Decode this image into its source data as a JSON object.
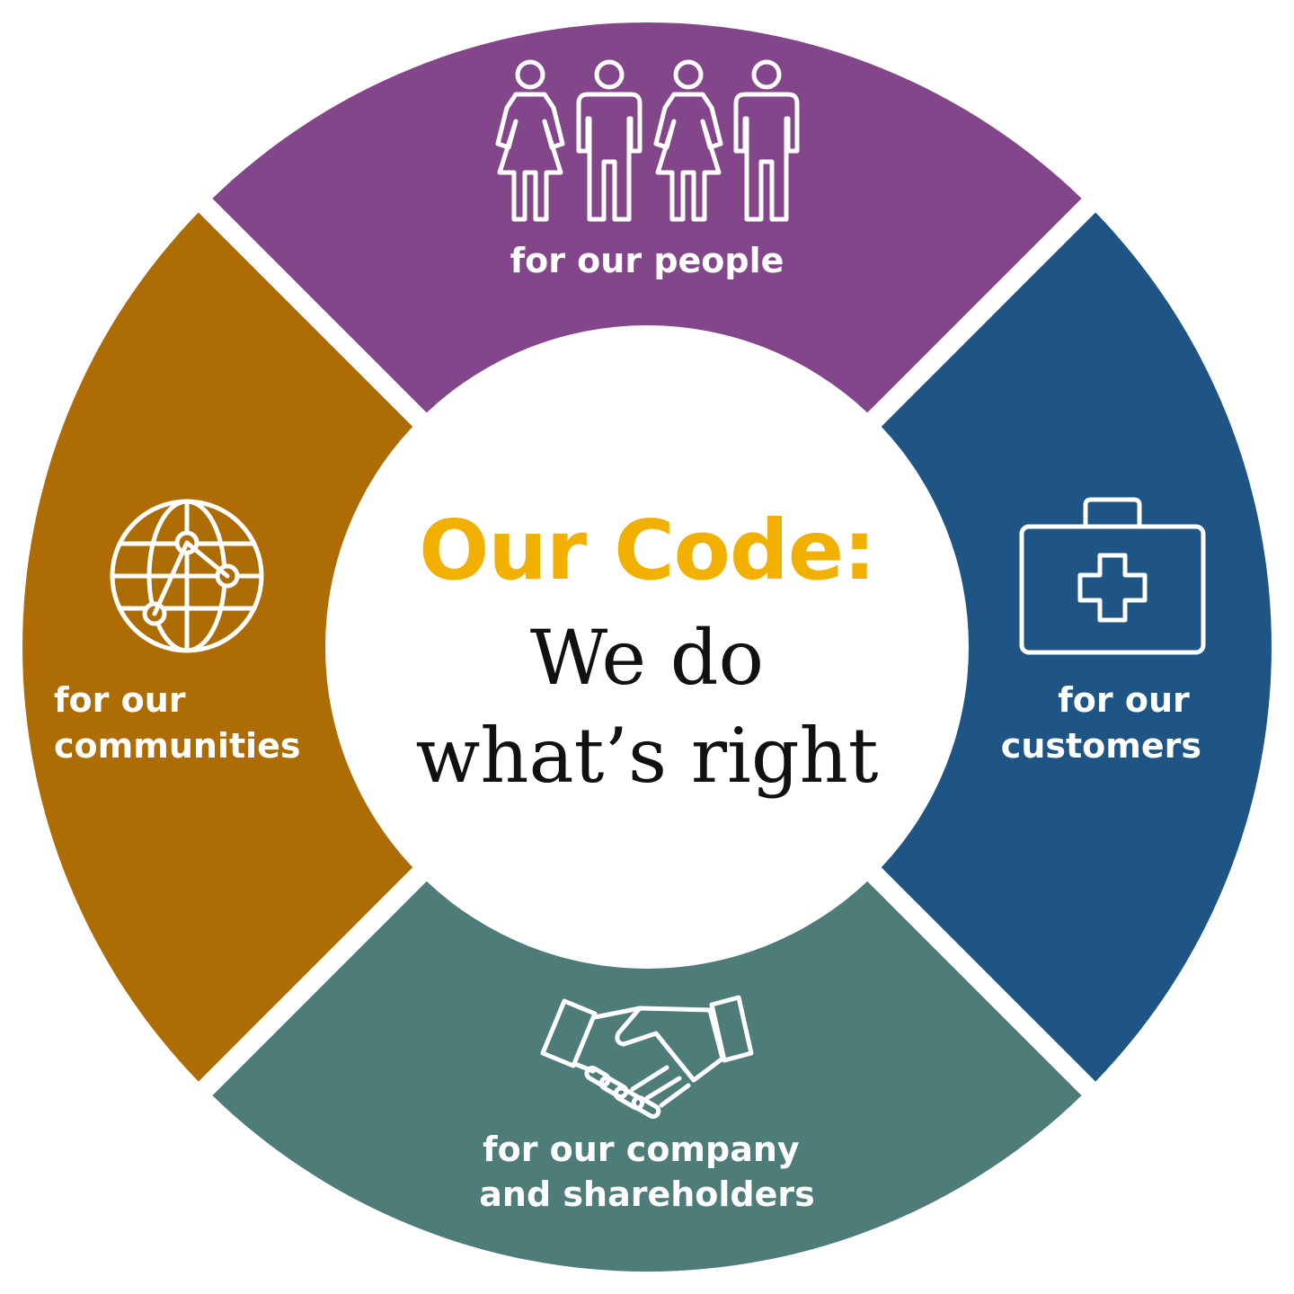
{
  "center": {
    "title_accent": "Our Code:",
    "title_line1": "We do",
    "title_line2": "what’s right",
    "accent_color": "#F2B000",
    "text_color": "#111111"
  },
  "segments": [
    {
      "id": "people",
      "lines": [
        "for our people"
      ],
      "color": "#83468A",
      "icon": "people-icon"
    },
    {
      "id": "customers",
      "lines": [
        "for our",
        "customers"
      ],
      "color": "#1E5585",
      "icon": "first-aid-kit-icon"
    },
    {
      "id": "company",
      "lines": [
        "for our company",
        "and shareholders"
      ],
      "color": "#4E7C79",
      "icon": "handshake-icon"
    },
    {
      "id": "communities",
      "lines": [
        "for our",
        "communities"
      ],
      "color": "#AE6C05",
      "icon": "globe-icon"
    }
  ]
}
